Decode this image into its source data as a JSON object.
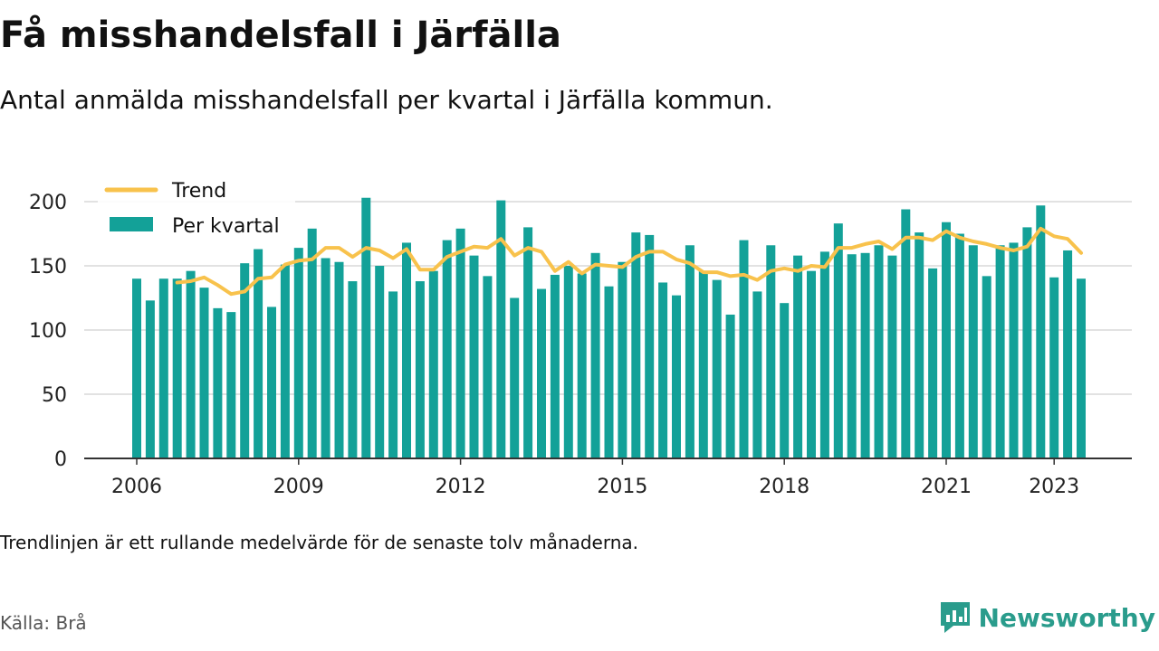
{
  "title": "Få misshandelsfall i Järfälla",
  "subtitle": "Antal anmälda misshandelsfall per kvartal i Järfälla kommun.",
  "footnote": "Trendlinjen är ett rullande medelvärde för de senaste tolv månaderna.",
  "source": "Källa: Brå",
  "brand": {
    "name": "Newsworthy",
    "icon": "newsworthy-logo-icon",
    "color": "#2a9c8c"
  },
  "colors": {
    "bar": "#13a198",
    "trend": "#f8c24c",
    "grid": "#d9d9d9",
    "axis": "#333333"
  },
  "chart_data": {
    "type": "bar",
    "x_start": "2006 Q1",
    "x_ticks": [
      "2006",
      "2009",
      "2012",
      "2015",
      "2018",
      "2021",
      "2023"
    ],
    "y_ticks": [
      0,
      50,
      100,
      150,
      200
    ],
    "ylim": [
      0,
      200
    ],
    "grid": true,
    "legend": "top-left",
    "series": [
      {
        "name": "Per kvartal",
        "type": "bar",
        "values": [
          140,
          123,
          140,
          140,
          146,
          133,
          117,
          114,
          152,
          163,
          118,
          151,
          164,
          179,
          156,
          153,
          138,
          203,
          150,
          130,
          168,
          138,
          146,
          170,
          179,
          158,
          142,
          201,
          125,
          180,
          132,
          143,
          150,
          144,
          160,
          134,
          153,
          176,
          174,
          137,
          127,
          166,
          146,
          139,
          112,
          170,
          130,
          166,
          121,
          158,
          146,
          161,
          183,
          159,
          160,
          166,
          158,
          194,
          176,
          148,
          184,
          175,
          166,
          142,
          166,
          168,
          180,
          197,
          141,
          162,
          140
        ]
      },
      {
        "name": "Trend",
        "type": "line",
        "values": [
          null,
          null,
          null,
          137,
          138,
          141,
          135,
          128,
          130,
          140,
          141,
          151,
          154,
          155,
          164,
          164,
          157,
          164,
          162,
          156,
          163,
          147,
          147,
          157,
          161,
          165,
          164,
          171,
          158,
          164,
          161,
          146,
          153,
          144,
          151,
          150,
          149,
          157,
          161,
          161,
          155,
          152,
          145,
          145,
          142,
          143,
          139,
          146,
          148,
          146,
          150,
          149,
          164,
          164,
          167,
          169,
          163,
          172,
          172,
          170,
          177,
          172,
          169,
          167,
          164,
          162,
          165,
          179,
          173,
          171,
          160
        ]
      }
    ]
  }
}
